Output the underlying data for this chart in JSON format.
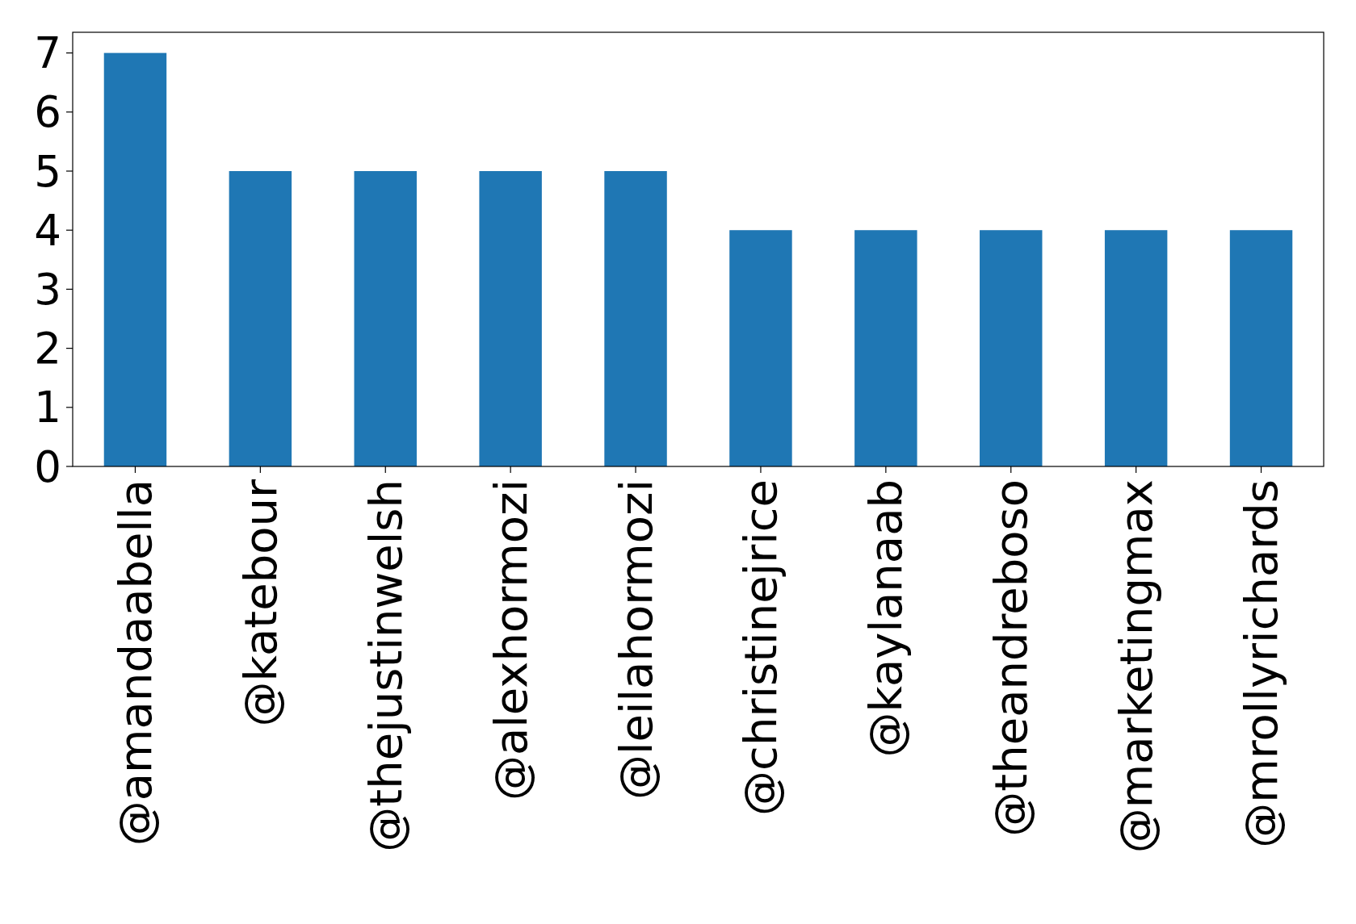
{
  "chart_data": {
    "type": "bar",
    "categories": [
      "@amandaabella",
      "@katebour",
      "@thejustinwelsh",
      "@alexhormozi",
      "@leilahormozi",
      "@christinejrice",
      "@kaylanaab",
      "@theandreboso",
      "@marketingmax",
      "@mrollyrichards"
    ],
    "values": [
      7,
      5,
      5,
      5,
      5,
      4,
      4,
      4,
      4,
      4
    ],
    "color": "#1f77b4",
    "ylim": [
      0,
      7.35
    ],
    "yticks": [
      0,
      1,
      2,
      3,
      4,
      5,
      6,
      7
    ]
  }
}
